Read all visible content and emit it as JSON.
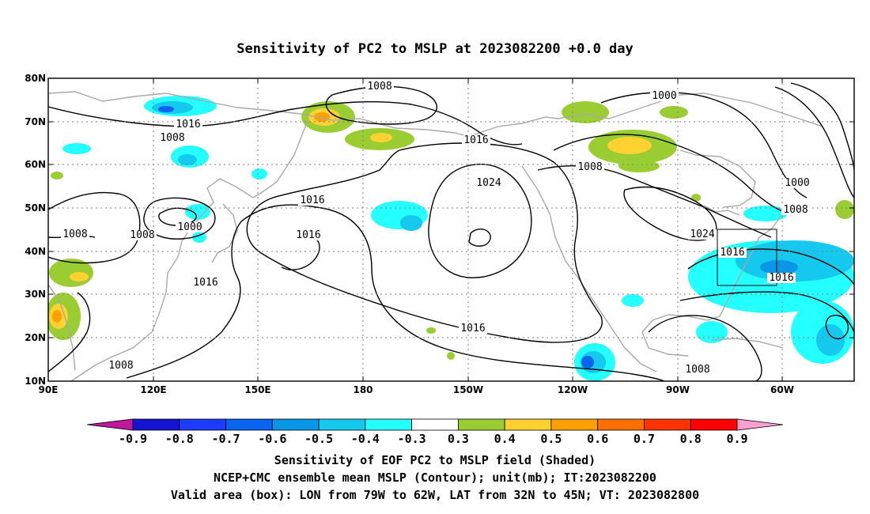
{
  "title": "Sensitivity of PC2 to MSLP at 2023082200 +0.0 day",
  "map": {
    "lon_labels": [
      "90E",
      "120E",
      "150E",
      "180",
      "150W",
      "120W",
      "90W",
      "60W"
    ],
    "lat_labels": [
      "80N",
      "70N",
      "60N",
      "50N",
      "40N",
      "30N",
      "20N",
      "10N"
    ],
    "lon_range": [
      "90E",
      "40W"
    ],
    "lat_range": [
      "10N",
      "80N"
    ],
    "gridlines": "dotted",
    "contour_color": "#000000",
    "coastline_color": "#a9a9a9",
    "contour_labels": [
      "1008",
      "1000",
      "1016",
      "1008",
      "1016",
      "1016",
      "1024",
      "1008",
      "1016",
      "1008",
      "1016",
      "1008",
      "1000",
      "1016",
      "1000",
      "1008",
      "1024",
      "1016",
      "1016",
      "1008",
      "1008"
    ],
    "valid_box": {
      "lon": [
        "79W",
        "62W"
      ],
      "lat": [
        "32N",
        "45N"
      ]
    }
  },
  "colorbar": {
    "levels": [
      "-0.9",
      "-0.8",
      "-0.7",
      "-0.6",
      "-0.5",
      "-0.4",
      "-0.3",
      "0.3",
      "0.4",
      "0.5",
      "0.6",
      "0.7",
      "0.8",
      "0.9"
    ],
    "colors": [
      "#c0189c",
      "#1414d2",
      "#1e3cff",
      "#0a64f0",
      "#0a96e6",
      "#14c8ee",
      "#24ffff",
      "#ffffff",
      "#9acd32",
      "#ffd232",
      "#ffa000",
      "#ff7000",
      "#ff3200",
      "#ff0000",
      "#ffa0d2"
    ]
  },
  "captions": [
    "Sensitivity of EOF PC2 to MSLP field (Shaded)",
    "NCEP+CMC ensemble mean MSLP (Contour); unit(mb); IT:2023082200",
    "Valid area (box): LON from 79W to 62W, LAT from 32N to 45N; VT: 2023082800"
  ]
}
